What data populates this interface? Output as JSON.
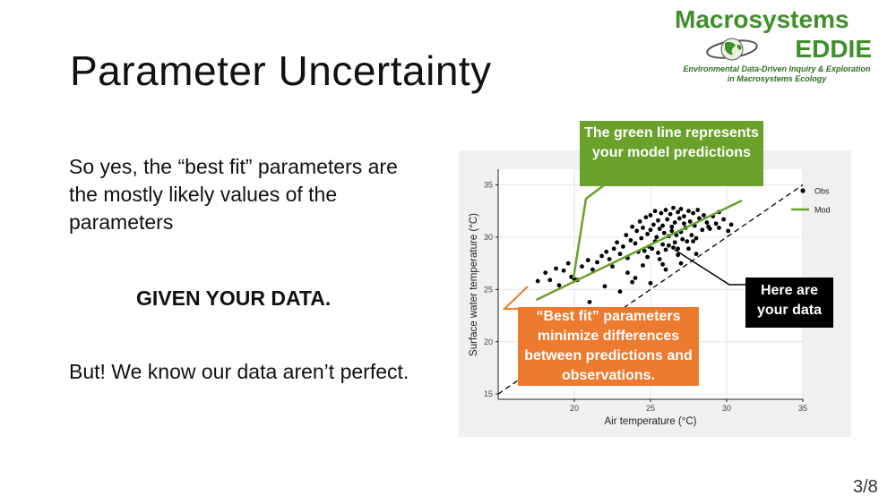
{
  "slide": {
    "title": "Parameter Uncertainty",
    "paragraph1": "So yes, the “best fit” parameters are the mostly likely values of the parameters",
    "paragraph2": "GIVEN YOUR DATA.",
    "paragraph3": "But! We know our data aren’t perfect.",
    "page_number": "3/8"
  },
  "logo": {
    "line1": "Macrosystems",
    "line2": "EDDIE",
    "tagline1": "Environmental Data-Driven Inquiry & Exploration",
    "tagline2": "in Macrosystems Ecology",
    "color": "#3f8f2a"
  },
  "callouts": {
    "green": "The green line represents your model predictions",
    "orange": "“Best fit” parameters minimize differences between predictions and observations.",
    "black": "Here are your data",
    "green_color": "#6aa12b",
    "orange_color": "#ec7a2f"
  },
  "chart_data": {
    "type": "scatter",
    "xlabel": "Air temperature (°C)",
    "ylabel": "Surface water temperature (°C)",
    "xlim": [
      15,
      35
    ],
    "ylim": [
      14.5,
      36.5
    ],
    "x_ticks": [
      20,
      25,
      30,
      35
    ],
    "y_ticks": [
      15,
      20,
      25,
      30,
      35
    ],
    "grid": true,
    "legend_position": "top-right",
    "legend": [
      {
        "label": "Obs",
        "marker": "point",
        "color": "#000000"
      },
      {
        "label": "Mod",
        "marker": "line",
        "color": "#6aa12b"
      }
    ],
    "model_line": {
      "x": [
        17.5,
        31
      ],
      "y": [
        24,
        33.5
      ],
      "color": "#6aa12b"
    },
    "reference_line": {
      "x": [
        15,
        35
      ],
      "y": [
        15,
        35
      ],
      "style": "dashed",
      "color": "#000000"
    },
    "observations": {
      "x": [
        17.6,
        18.1,
        18.4,
        18.8,
        19.3,
        19.6,
        19.8,
        20.2,
        20.5,
        20.9,
        21.2,
        21.5,
        21.8,
        22.1,
        22.3,
        22.6,
        22.8,
        23.0,
        23.2,
        23.4,
        23.5,
        23.7,
        23.8,
        24.0,
        24.1,
        24.2,
        24.3,
        24.4,
        24.5,
        24.6,
        24.7,
        24.8,
        24.9,
        25.0,
        25.0,
        25.1,
        25.2,
        25.3,
        25.3,
        25.4,
        25.5,
        25.5,
        25.6,
        25.7,
        25.8,
        25.8,
        25.9,
        26.0,
        26.0,
        26.1,
        26.2,
        26.2,
        26.3,
        26.4,
        26.4,
        26.5,
        26.6,
        26.6,
        26.7,
        26.8,
        26.8,
        26.9,
        27.0,
        27.0,
        27.1,
        27.2,
        27.2,
        27.3,
        27.4,
        27.5,
        27.6,
        27.7,
        27.8,
        27.9,
        28.0,
        28.1,
        28.2,
        28.4,
        28.5,
        28.7,
        28.9,
        29.1,
        29.3,
        29.5,
        29.8,
        30.1,
        21.0,
        22.0,
        23.5,
        24.5,
        25.6,
        26.8,
        27.5,
        24.0,
        25.0,
        26.0,
        27.0,
        28.0,
        23.0,
        22.5,
        20.0,
        19.0,
        26.5,
        27.8,
        28.8,
        25.8,
        24.8,
        23.8,
        29.5,
        30.3
      ],
      "y": [
        25.8,
        26.6,
        25.9,
        27.0,
        26.8,
        27.5,
        26.2,
        25.9,
        27.2,
        27.8,
        26.9,
        27.6,
        28.2,
        28.6,
        27.9,
        28.9,
        29.5,
        28.4,
        29.1,
        30.2,
        28.0,
        29.7,
        31.0,
        29.4,
        30.6,
        28.6,
        31.5,
        29.9,
        30.9,
        28.7,
        31.9,
        30.3,
        29.1,
        32.1,
        30.7,
        28.9,
        31.2,
        29.6,
        32.5,
        30.0,
        31.6,
        28.5,
        30.8,
        32.3,
        29.3,
        31.1,
        30.4,
        32.6,
        28.8,
        31.7,
        30.1,
        29.2,
        32.2,
        31.0,
        30.6,
        32.8,
        29.5,
        31.4,
        30.2,
        32.4,
        28.9,
        31.8,
        30.5,
        32.7,
        29.8,
        31.3,
        32.0,
        30.9,
        29.6,
        32.5,
        31.5,
        30.2,
        32.3,
        31.1,
        29.9,
        32.6,
        31.8,
        30.7,
        32.1,
        31.4,
        30.8,
        32.0,
        31.3,
        30.9,
        31.7,
        30.6,
        23.8,
        25.3,
        26.6,
        27.3,
        27.9,
        28.3,
        28.9,
        26.1,
        25.6,
        26.9,
        27.5,
        28.4,
        24.8,
        27.2,
        26.0,
        25.4,
        29.0,
        29.6,
        31.0,
        27.4,
        28.1,
        25.7,
        32.4,
        31.2
      ]
    }
  }
}
